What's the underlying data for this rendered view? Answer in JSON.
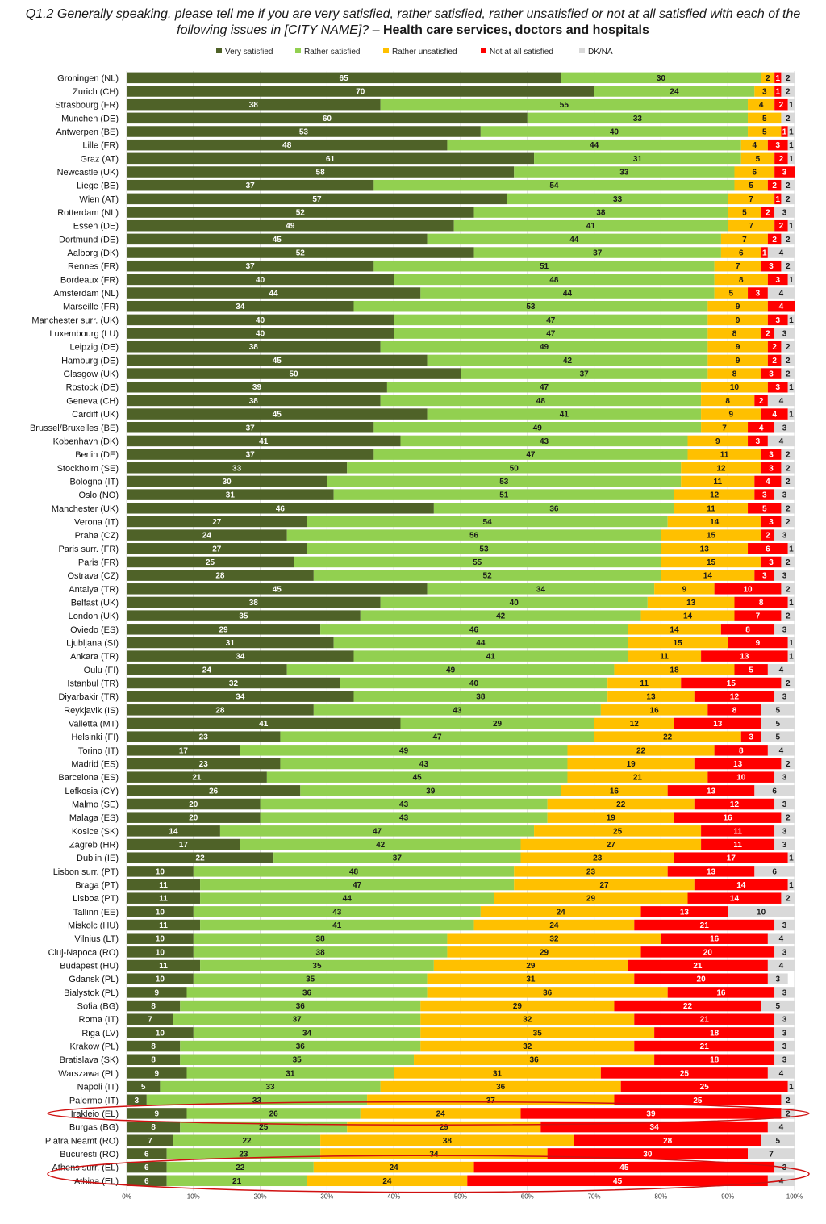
{
  "title": {
    "question": "Q1.2 Generally speaking, please tell me if you are very satisfied, rather satisfied, rather unsatisfied or not at all satisfied with each of the following issues in [CITY NAME]? –",
    "topic": "Health care services, doctors and hospitals"
  },
  "chart_data": {
    "type": "bar",
    "orientation": "horizontal",
    "stacked": "100%",
    "xlim": [
      0,
      100
    ],
    "x_ticks": [
      "0%",
      "10%",
      "20%",
      "30%",
      "40%",
      "50%",
      "60%",
      "70%",
      "80%",
      "90%",
      "100%"
    ],
    "legend_position": "top",
    "series": [
      {
        "name": "Very satisfied",
        "color": "#4f6228"
      },
      {
        "name": "Rather satisfied",
        "color": "#92d050"
      },
      {
        "name": "Rather unsatisfied",
        "color": "#ffc000"
      },
      {
        "name": "Not at all satisfied",
        "color": "#ff0000"
      },
      {
        "name": "DK/NA",
        "color": "#d9d9d9"
      }
    ],
    "highlighted": [
      "Irakleio (EL)",
      "Athens surr. (EL)",
      "Athina (EL)"
    ],
    "rows": [
      {
        "city": "Groningen (NL)",
        "values": [
          65,
          30,
          2,
          1,
          2
        ]
      },
      {
        "city": "Zurich (CH)",
        "values": [
          70,
          24,
          3,
          1,
          2
        ]
      },
      {
        "city": "Strasbourg (FR)",
        "values": [
          38,
          55,
          4,
          2,
          1
        ]
      },
      {
        "city": "Munchen (DE)",
        "values": [
          60,
          33,
          5,
          0,
          2
        ]
      },
      {
        "city": "Antwerpen (BE)",
        "values": [
          53,
          40,
          5,
          1,
          1
        ]
      },
      {
        "city": "Lille (FR)",
        "values": [
          48,
          44,
          4,
          3,
          1
        ]
      },
      {
        "city": "Graz (AT)",
        "values": [
          61,
          31,
          5,
          2,
          1
        ]
      },
      {
        "city": "Newcastle (UK)",
        "values": [
          58,
          33,
          6,
          3,
          0
        ]
      },
      {
        "city": "Liege (BE)",
        "values": [
          37,
          54,
          5,
          2,
          2
        ]
      },
      {
        "city": "Wien (AT)",
        "values": [
          57,
          33,
          7,
          1,
          2
        ]
      },
      {
        "city": "Rotterdam (NL)",
        "values": [
          52,
          38,
          5,
          2,
          3
        ]
      },
      {
        "city": "Essen (DE)",
        "values": [
          49,
          41,
          7,
          2,
          1
        ]
      },
      {
        "city": "Dortmund (DE)",
        "values": [
          45,
          44,
          7,
          2,
          2
        ]
      },
      {
        "city": "Aalborg (DK)",
        "values": [
          52,
          37,
          6,
          1,
          4
        ]
      },
      {
        "city": "Rennes (FR)",
        "values": [
          37,
          51,
          7,
          3,
          2
        ]
      },
      {
        "city": "Bordeaux (FR)",
        "values": [
          40,
          48,
          8,
          3,
          1
        ]
      },
      {
        "city": "Amsterdam (NL)",
        "values": [
          44,
          44,
          5,
          3,
          4
        ]
      },
      {
        "city": "Marseille (FR)",
        "values": [
          34,
          53,
          9,
          4,
          0
        ]
      },
      {
        "city": "Manchester surr. (UK)",
        "values": [
          40,
          47,
          9,
          3,
          1
        ]
      },
      {
        "city": "Luxembourg (LU)",
        "values": [
          40,
          47,
          8,
          2,
          3
        ]
      },
      {
        "city": "Leipzig (DE)",
        "values": [
          38,
          49,
          9,
          2,
          2
        ]
      },
      {
        "city": "Hamburg (DE)",
        "values": [
          45,
          42,
          9,
          2,
          2
        ]
      },
      {
        "city": "Glasgow (UK)",
        "values": [
          50,
          37,
          8,
          3,
          2
        ]
      },
      {
        "city": "Rostock (DE)",
        "values": [
          39,
          47,
          10,
          3,
          1
        ]
      },
      {
        "city": "Geneva (CH)",
        "values": [
          38,
          48,
          8,
          2,
          4
        ]
      },
      {
        "city": "Cardiff (UK)",
        "values": [
          45,
          41,
          9,
          4,
          1
        ]
      },
      {
        "city": "Brussel/Bruxelles (BE)",
        "values": [
          37,
          49,
          7,
          4,
          3
        ]
      },
      {
        "city": "Kobenhavn (DK)",
        "values": [
          41,
          43,
          9,
          3,
          4
        ]
      },
      {
        "city": "Berlin (DE)",
        "values": [
          37,
          47,
          11,
          3,
          2
        ]
      },
      {
        "city": "Stockholm (SE)",
        "values": [
          33,
          50,
          12,
          3,
          2
        ]
      },
      {
        "city": "Bologna (IT)",
        "values": [
          30,
          53,
          11,
          4,
          2
        ]
      },
      {
        "city": "Oslo (NO)",
        "values": [
          31,
          51,
          12,
          3,
          3
        ]
      },
      {
        "city": "Manchester (UK)",
        "values": [
          46,
          36,
          11,
          5,
          2
        ]
      },
      {
        "city": "Verona (IT)",
        "values": [
          27,
          54,
          14,
          3,
          2
        ]
      },
      {
        "city": "Praha (CZ)",
        "values": [
          24,
          56,
          15,
          2,
          3
        ]
      },
      {
        "city": "Paris surr. (FR)",
        "values": [
          27,
          53,
          13,
          6,
          1
        ]
      },
      {
        "city": "Paris (FR)",
        "values": [
          25,
          55,
          15,
          3,
          2
        ]
      },
      {
        "city": "Ostrava (CZ)",
        "values": [
          28,
          52,
          14,
          3,
          3
        ]
      },
      {
        "city": "Antalya (TR)",
        "values": [
          45,
          34,
          9,
          10,
          2
        ]
      },
      {
        "city": "Belfast (UK)",
        "values": [
          38,
          40,
          13,
          8,
          1
        ]
      },
      {
        "city": "London (UK)",
        "values": [
          35,
          42,
          14,
          7,
          2
        ]
      },
      {
        "city": "Oviedo (ES)",
        "values": [
          29,
          46,
          14,
          8,
          3
        ]
      },
      {
        "city": "Ljubljana (SI)",
        "values": [
          31,
          44,
          15,
          9,
          1
        ]
      },
      {
        "city": "Ankara (TR)",
        "values": [
          34,
          41,
          11,
          13,
          1
        ]
      },
      {
        "city": "Oulu (FI)",
        "values": [
          24,
          49,
          18,
          5,
          4
        ]
      },
      {
        "city": "Istanbul (TR)",
        "values": [
          32,
          40,
          11,
          15,
          2
        ]
      },
      {
        "city": "Diyarbakir (TR)",
        "values": [
          34,
          38,
          13,
          12,
          3
        ]
      },
      {
        "city": "Reykjavik (IS)",
        "values": [
          28,
          43,
          16,
          8,
          5
        ]
      },
      {
        "city": "Valletta (MT)",
        "values": [
          41,
          29,
          12,
          13,
          5
        ]
      },
      {
        "city": "Helsinki (FI)",
        "values": [
          23,
          47,
          22,
          3,
          5
        ]
      },
      {
        "city": "Torino (IT)",
        "values": [
          17,
          49,
          22,
          8,
          4
        ]
      },
      {
        "city": "Madrid (ES)",
        "values": [
          23,
          43,
          19,
          13,
          2
        ]
      },
      {
        "city": "Barcelona (ES)",
        "values": [
          21,
          45,
          21,
          10,
          3
        ]
      },
      {
        "city": "Lefkosia (CY)",
        "values": [
          26,
          39,
          16,
          13,
          6
        ]
      },
      {
        "city": "Malmo (SE)",
        "values": [
          20,
          43,
          22,
          12,
          3
        ]
      },
      {
        "city": "Malaga (ES)",
        "values": [
          20,
          43,
          19,
          16,
          2
        ]
      },
      {
        "city": "Kosice (SK)",
        "values": [
          14,
          47,
          25,
          11,
          3
        ]
      },
      {
        "city": "Zagreb (HR)",
        "values": [
          17,
          42,
          27,
          11,
          3
        ]
      },
      {
        "city": "Dublin (IE)",
        "values": [
          22,
          37,
          23,
          17,
          1
        ]
      },
      {
        "city": "Lisbon surr. (PT)",
        "values": [
          10,
          48,
          23,
          13,
          6
        ]
      },
      {
        "city": "Braga (PT)",
        "values": [
          11,
          47,
          27,
          14,
          1
        ]
      },
      {
        "city": "Lisboa (PT)",
        "values": [
          11,
          44,
          29,
          14,
          2
        ]
      },
      {
        "city": "Tallinn (EE)",
        "values": [
          10,
          43,
          24,
          13,
          10
        ]
      },
      {
        "city": "Miskolc (HU)",
        "values": [
          11,
          41,
          24,
          21,
          3
        ]
      },
      {
        "city": "Vilnius (LT)",
        "values": [
          10,
          38,
          32,
          16,
          4
        ]
      },
      {
        "city": "Cluj-Napoca (RO)",
        "values": [
          10,
          38,
          29,
          20,
          3
        ]
      },
      {
        "city": "Budapest (HU)",
        "values": [
          11,
          35,
          29,
          21,
          4
        ]
      },
      {
        "city": "Gdansk (PL)",
        "values": [
          10,
          35,
          31,
          20,
          3
        ]
      },
      {
        "city": "Bialystok (PL)",
        "values": [
          9,
          36,
          36,
          16,
          3
        ]
      },
      {
        "city": "Sofia (BG)",
        "values": [
          8,
          36,
          29,
          22,
          5
        ]
      },
      {
        "city": "Roma (IT)",
        "values": [
          7,
          37,
          32,
          21,
          3
        ]
      },
      {
        "city": "Riga (LV)",
        "values": [
          10,
          34,
          35,
          18,
          3
        ]
      },
      {
        "city": "Krakow (PL)",
        "values": [
          8,
          36,
          32,
          21,
          3
        ]
      },
      {
        "city": "Bratislava (SK)",
        "values": [
          8,
          35,
          36,
          18,
          3
        ]
      },
      {
        "city": "Warszawa (PL)",
        "values": [
          9,
          31,
          31,
          25,
          4
        ]
      },
      {
        "city": "Napoli (IT)",
        "values": [
          5,
          33,
          36,
          25,
          1
        ]
      },
      {
        "city": "Palermo (IT)",
        "values": [
          3,
          33,
          37,
          25,
          2
        ]
      },
      {
        "city": "Irakleio (EL)",
        "values": [
          9,
          26,
          24,
          39,
          2
        ]
      },
      {
        "city": "Burgas (BG)",
        "values": [
          8,
          25,
          29,
          34,
          4
        ]
      },
      {
        "city": "Piatra Neamt (RO)",
        "values": [
          7,
          22,
          38,
          28,
          5
        ]
      },
      {
        "city": "Bucuresti (RO)",
        "values": [
          6,
          23,
          34,
          30,
          7
        ]
      },
      {
        "city": "Athens surr. (EL)",
        "values": [
          6,
          22,
          24,
          45,
          3
        ]
      },
      {
        "city": "Athina (EL)",
        "values": [
          6,
          21,
          24,
          45,
          4
        ]
      }
    ]
  }
}
